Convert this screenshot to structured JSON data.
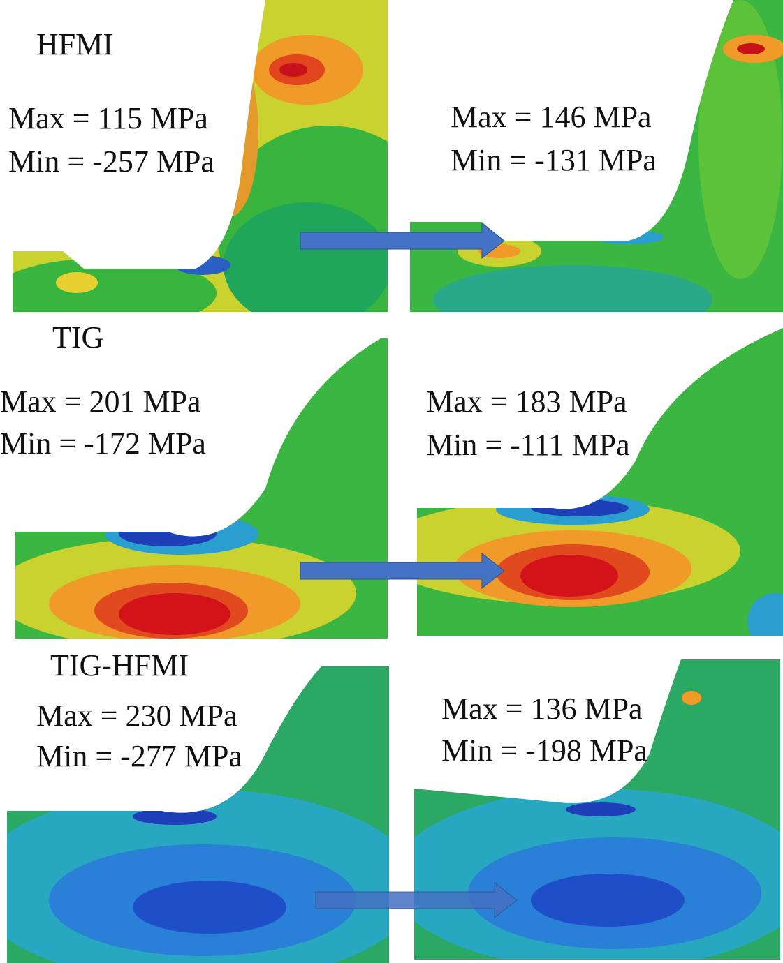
{
  "rows": [
    {
      "label": "HFMI",
      "panels": [
        {
          "max": "Max = 115 MPa",
          "min": "Min = -257 MPa"
        },
        {
          "max": "Max = 146 MPa",
          "min": "Min = -131 MPa"
        }
      ]
    },
    {
      "label": "TIG",
      "panels": [
        {
          "max": "Max = 201 MPa",
          "min": "Min = -172 MPa"
        },
        {
          "max": "Max = 183 MPa",
          "min": "Min = -111 MPa"
        }
      ]
    },
    {
      "label": "TIG-HFMI",
      "panels": [
        {
          "max": "Max = 230 MPa",
          "min": "Min = -277 MPa"
        },
        {
          "max": "Max = 136 MPa",
          "min": "Min = -198 MPa"
        }
      ]
    }
  ]
}
